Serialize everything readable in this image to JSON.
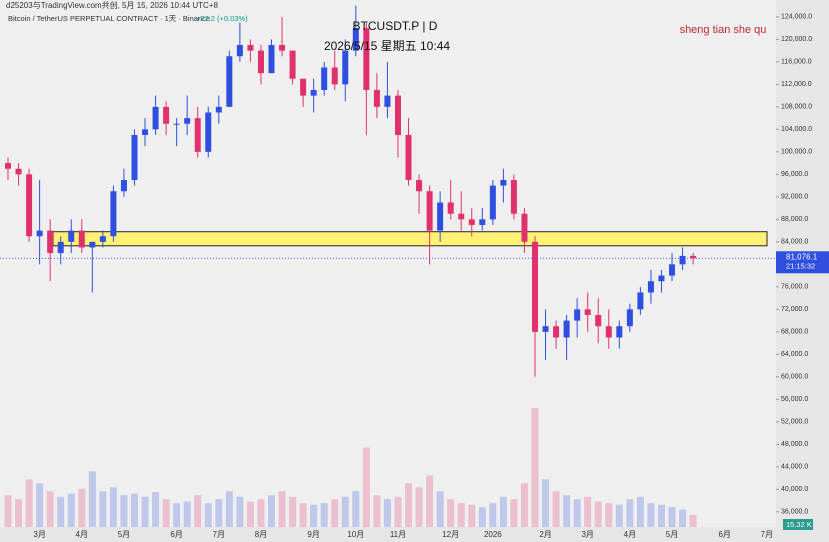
{
  "header": {
    "credit": "d25203与TradingView.com共创, 5月 15, 2026 10:44 UTC+8",
    "instrument": "Bitcoin / TetherUS PERPETUAL CONTRACT · 1天 · Binance",
    "change": "+27.2 (+0.03%)",
    "symbol": "BTCUSDT.P | D",
    "datetime": "2026/5/15 星期五 10:44",
    "watermark": "sheng tian she qu"
  },
  "chart_data": {
    "type": "candlestick",
    "up_color": "#2f4fe0",
    "down_color": "#e0306e",
    "categories": [
      null,
      null,
      null,
      "3月",
      null,
      null,
      null,
      "4月",
      null,
      null,
      null,
      "5月",
      null,
      null,
      null,
      null,
      "6月",
      null,
      null,
      null,
      "7月",
      null,
      null,
      null,
      "8月",
      null,
      null,
      null,
      null,
      "9月",
      null,
      null,
      null,
      "10月",
      null,
      null,
      null,
      "11月",
      null,
      null,
      null,
      null,
      "12月",
      null,
      null,
      null,
      "2026",
      null,
      null,
      null,
      null,
      "2月",
      null,
      null,
      null,
      "3月",
      null,
      null,
      null,
      "4月",
      null,
      null,
      null,
      "5月",
      null,
      null,
      null,
      null,
      "6月",
      null,
      null,
      null,
      "7月"
    ],
    "open": [
      98000,
      97000,
      96000,
      85000,
      86000,
      82000,
      84000,
      86000,
      83000,
      84000,
      85000,
      93000,
      95000,
      103000,
      104000,
      108000,
      105000,
      105000,
      106000,
      100000,
      107000,
      108000,
      117000,
      119000,
      118000,
      114000,
      119000,
      118000,
      113000,
      110000,
      111000,
      115000,
      112000,
      118000,
      122000,
      111000,
      108000,
      110000,
      103000,
      95000,
      93000,
      86000,
      91000,
      89000,
      88000,
      87000,
      88000,
      94000,
      95000,
      89000,
      84000,
      68000,
      69000,
      67000,
      70000,
      72000,
      71000,
      69000,
      67000,
      69000,
      72000,
      75000,
      77000,
      78000,
      80000,
      81500,
      null,
      null,
      null,
      null,
      null,
      null,
      null
    ],
    "high": [
      99000,
      98000,
      97000,
      95000,
      88000,
      85000,
      88000,
      88000,
      84000,
      86000,
      94000,
      97000,
      104000,
      106000,
      110000,
      109000,
      106000,
      110000,
      108000,
      108000,
      110000,
      118000,
      123000,
      120000,
      119000,
      120000,
      124000,
      118000,
      113000,
      113000,
      116000,
      118000,
      120000,
      126000,
      123000,
      114000,
      116000,
      111000,
      106000,
      96000,
      94000,
      93000,
      95000,
      93000,
      90000,
      90000,
      95000,
      97000,
      96000,
      90000,
      85000,
      72000,
      70000,
      71000,
      74000,
      75000,
      74000,
      72000,
      70000,
      73000,
      76000,
      79000,
      79000,
      82000,
      83000,
      82000,
      null,
      null,
      null,
      null,
      null,
      null,
      null
    ],
    "low": [
      95000,
      94000,
      84000,
      80000,
      77000,
      80000,
      82000,
      82000,
      75000,
      83000,
      84000,
      92000,
      94000,
      101000,
      103000,
      103000,
      101000,
      103000,
      99000,
      99000,
      105000,
      108000,
      116000,
      116000,
      112000,
      114000,
      117000,
      112000,
      108000,
      107000,
      110000,
      111000,
      109000,
      117000,
      103000,
      106000,
      106000,
      99000,
      94000,
      89000,
      80000,
      84000,
      88000,
      86000,
      85000,
      86000,
      87000,
      91000,
      88000,
      82000,
      60000,
      63000,
      65000,
      63000,
      67000,
      68000,
      66000,
      65000,
      65000,
      68000,
      71000,
      73000,
      75000,
      77000,
      79000,
      80000,
      null,
      null,
      null,
      null,
      null,
      null,
      null
    ],
    "close": [
      97000,
      96000,
      85000,
      86000,
      82000,
      84000,
      86000,
      83000,
      84000,
      85000,
      93000,
      95000,
      103000,
      104000,
      108000,
      105000,
      105000,
      106000,
      100000,
      107000,
      108000,
      117000,
      119000,
      118000,
      114000,
      119000,
      118000,
      113000,
      110000,
      111000,
      115000,
      112000,
      118000,
      122000,
      111000,
      108000,
      110000,
      103000,
      95000,
      93000,
      86000,
      91000,
      89000,
      88000,
      87000,
      88000,
      94000,
      95000,
      89000,
      84000,
      68000,
      69000,
      67000,
      70000,
      72000,
      71000,
      69000,
      67000,
      69000,
      72000,
      75000,
      77000,
      78000,
      80000,
      81500,
      81076.1,
      null,
      null,
      null,
      null,
      null,
      null,
      null
    ],
    "volume": [
      40,
      35,
      60,
      55,
      45,
      38,
      42,
      48,
      70,
      45,
      50,
      40,
      42,
      38,
      44,
      35,
      30,
      32,
      40,
      30,
      35,
      45,
      38,
      32,
      35,
      40,
      45,
      38,
      30,
      28,
      30,
      35,
      38,
      45,
      100,
      40,
      35,
      38,
      55,
      50,
      65,
      45,
      35,
      30,
      28,
      25,
      30,
      38,
      35,
      55,
      150,
      60,
      45,
      40,
      35,
      38,
      32,
      30,
      28,
      35,
      38,
      30,
      28,
      25,
      22,
      15.32,
      null,
      null,
      null,
      null,
      null,
      null,
      null
    ],
    "ylim": [
      33300,
      127000
    ],
    "y2lim": [
      0,
      170
    ],
    "yticks": [
      {
        "value": 36000,
        "label": "36,000.0"
      },
      {
        "value": 40000,
        "label": "40,000.0"
      },
      {
        "value": 44000,
        "label": "44,000.0"
      },
      {
        "value": 48000,
        "label": "48,000.0"
      },
      {
        "value": 52000,
        "label": "52,000.0"
      },
      {
        "value": 56000,
        "label": "56,000.0"
      },
      {
        "value": 60000,
        "label": "60,000.0"
      },
      {
        "value": 64000,
        "label": "64,000.0"
      },
      {
        "value": 68000,
        "label": "68,000.0"
      },
      {
        "value": 72000,
        "label": "72,000.0"
      },
      {
        "value": 76000,
        "label": "76,000.0"
      },
      {
        "value": 80000,
        "label": "80,000.0"
      },
      {
        "value": 84000,
        "label": "84,000.0"
      },
      {
        "value": 88000,
        "label": "88,000.0"
      },
      {
        "value": 92000,
        "label": "92,000.0"
      },
      {
        "value": 96000,
        "label": "96,000.0"
      },
      {
        "value": 100000,
        "label": "100,000.0"
      },
      {
        "value": 104000,
        "label": "104,000.0"
      },
      {
        "value": 108000,
        "label": "108,000.0"
      },
      {
        "value": 112000,
        "label": "112,000.0"
      },
      {
        "value": 116000,
        "label": "116,000.0"
      },
      {
        "value": 120000,
        "label": "120,000.0"
      },
      {
        "value": 124000,
        "label": "124,000.0"
      }
    ],
    "zone": {
      "low": 83300,
      "high": 85800,
      "color": "#fff176"
    },
    "last_price": {
      "value": 81076.1,
      "label": "81,076.1"
    },
    "countdown": "21:15:32",
    "last_volume": {
      "value": 15.32,
      "label": "15.32 K"
    }
  }
}
